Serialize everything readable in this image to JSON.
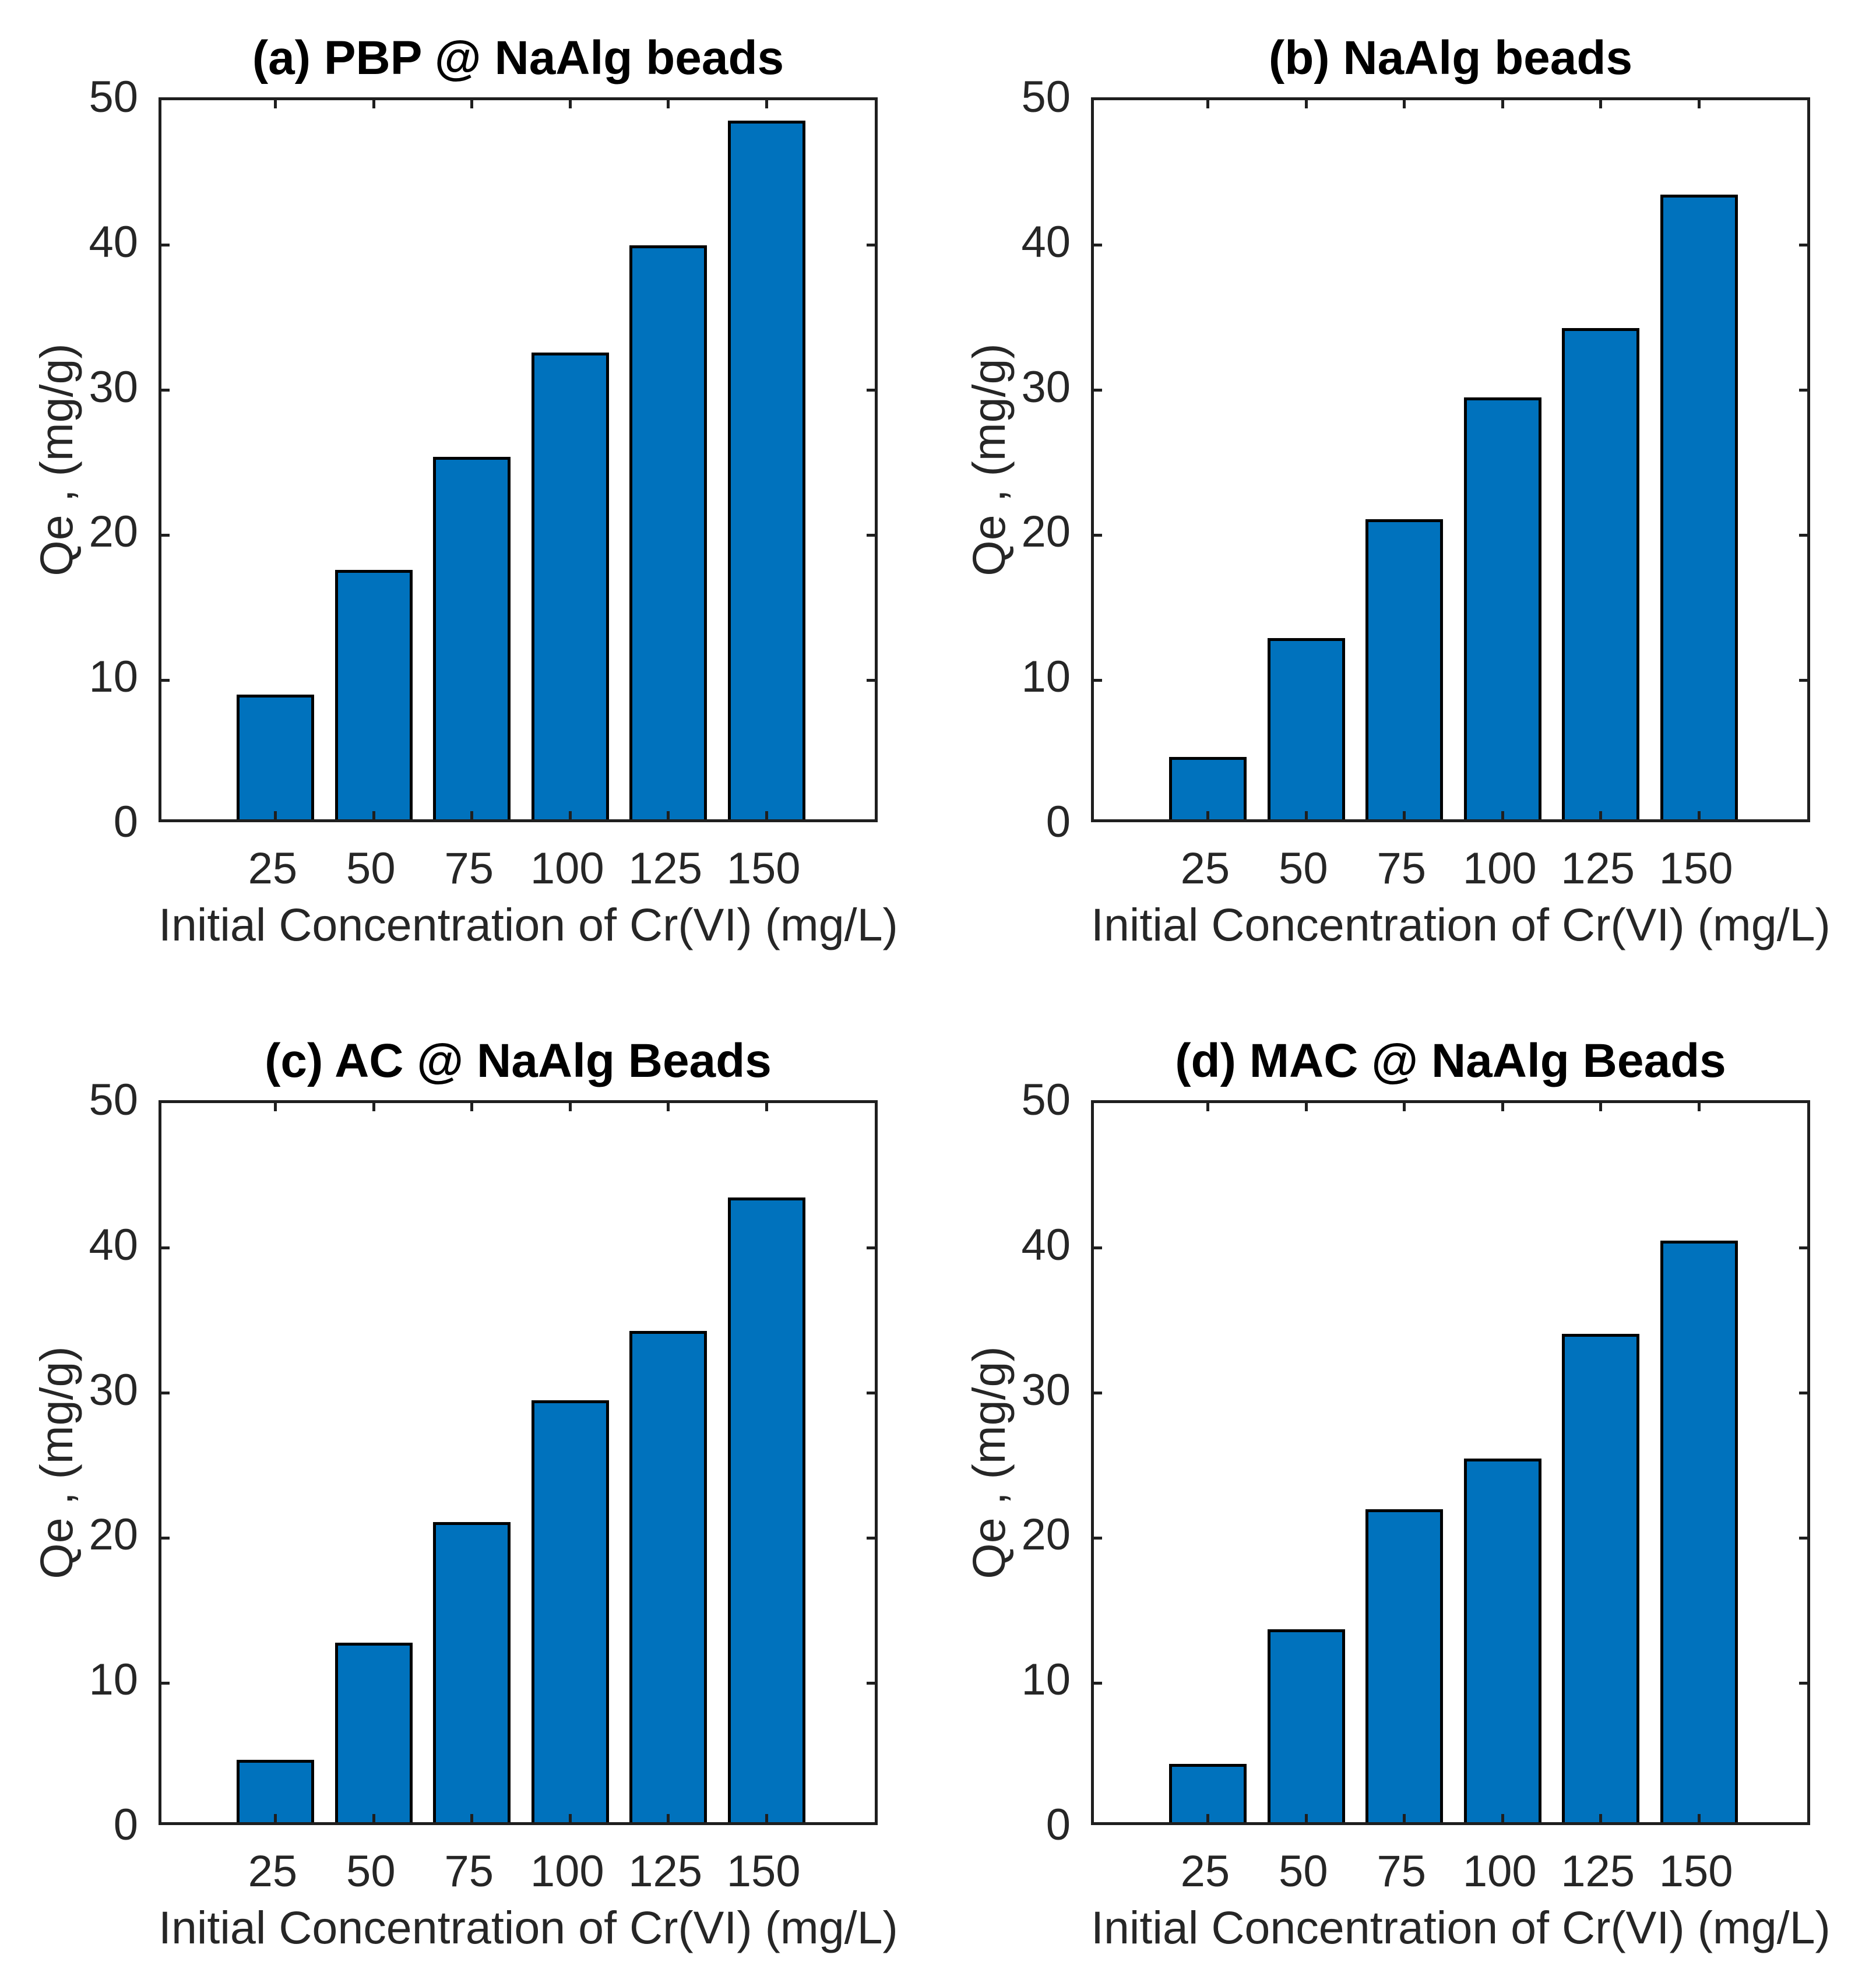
{
  "figure": {
    "panels": [
      "a",
      "b",
      "c",
      "d"
    ]
  },
  "style": {
    "bar_color": "#0072BD",
    "bar_edge_color": "#000000",
    "axis_color": "#1f1f1f",
    "label_color": "#262626",
    "title_color": "#000000",
    "background": "#ffffff"
  },
  "chart_data": [
    {
      "type": "bar",
      "panel": "a",
      "title": "(a) PBP @ NaAlg beads",
      "categories": [
        "25",
        "50",
        "75",
        "100",
        "125",
        "150"
      ],
      "values": [
        8.6,
        17.2,
        25.0,
        32.2,
        39.6,
        48.2
      ],
      "xlabel": "Initial Concentration of Cr(VI) (mg/L)",
      "ylabel": "Qe , (mg/g)",
      "ylim": [
        0,
        50
      ],
      "yticks": [
        0,
        10,
        20,
        30,
        40,
        50
      ],
      "grid": false,
      "legend": "none"
    },
    {
      "type": "bar",
      "panel": "b",
      "title": "(b) NaAlg beads",
      "categories": [
        "25",
        "50",
        "75",
        "100",
        "125",
        "150"
      ],
      "values": [
        4.3,
        12.5,
        20.7,
        29.1,
        33.9,
        43.1
      ],
      "xlabel": "Initial Concentration of Cr(VI) (mg/L)",
      "ylabel": "Qe , (mg/g)",
      "ylim": [
        0,
        50
      ],
      "yticks": [
        0,
        10,
        20,
        30,
        40,
        50
      ],
      "grid": false,
      "legend": "none"
    },
    {
      "type": "bar",
      "panel": "c",
      "title": "(c) AC @ NaAlg Beads",
      "categories": [
        "25",
        "50",
        "75",
        "100",
        "125",
        "150"
      ],
      "values": [
        4.3,
        12.4,
        20.7,
        29.1,
        33.9,
        43.1
      ],
      "xlabel": "Initial Concentration of Cr(VI) (mg/L)",
      "ylabel": "Qe , (mg/g)",
      "ylim": [
        0,
        50
      ],
      "yticks": [
        0,
        10,
        20,
        30,
        40,
        50
      ],
      "grid": false,
      "legend": "none"
    },
    {
      "type": "bar",
      "panel": "d",
      "title": "(d) MAC @ NaAlg Beads",
      "categories": [
        "25",
        "50",
        "75",
        "100",
        "125",
        "150"
      ],
      "values": [
        4.0,
        13.3,
        21.6,
        25.1,
        33.7,
        40.1
      ],
      "xlabel": "Initial Concentration of Cr(VI) (mg/L)",
      "ylabel": "Qe , (mg/g)",
      "ylim": [
        0,
        50
      ],
      "yticks": [
        0,
        10,
        20,
        30,
        40,
        50
      ],
      "grid": false,
      "legend": "none"
    }
  ]
}
